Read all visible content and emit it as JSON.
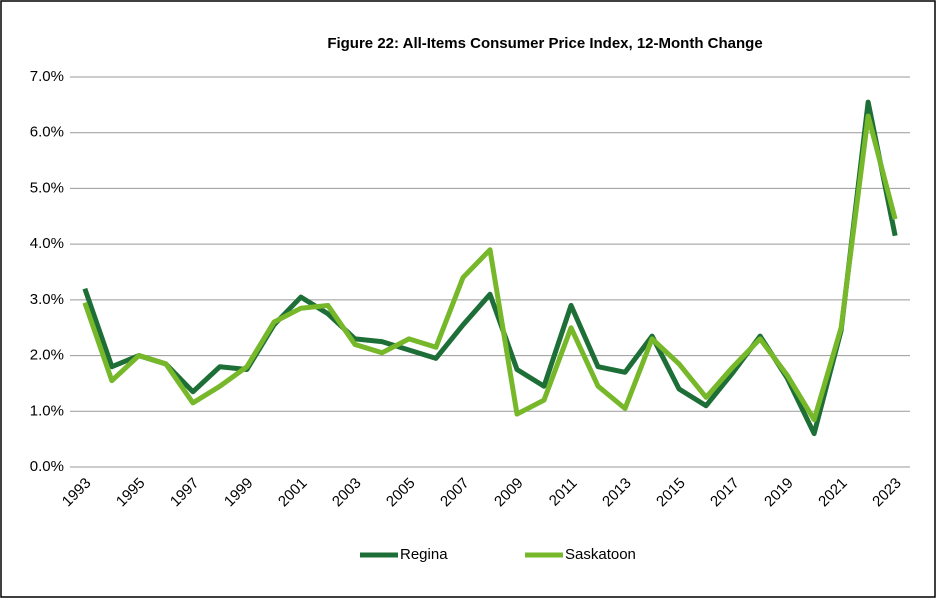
{
  "chart_data": {
    "type": "line",
    "title": "Figure 22: All-Items Consumer Price Index, 12-Month Change",
    "categories": [
      "1993",
      null,
      "1995",
      null,
      "1997",
      null,
      "1999",
      null,
      "2001",
      null,
      "2003",
      null,
      "2005",
      null,
      "2007",
      null,
      "2009",
      null,
      "2011",
      null,
      "2013",
      null,
      "2015",
      null,
      "2017",
      null,
      "2019",
      null,
      "2021",
      null,
      "2023"
    ],
    "series": [
      {
        "name": "Regina",
        "color": "#1e6f37",
        "values": [
          3.2,
          1.8,
          2.0,
          1.85,
          1.35,
          1.8,
          1.75,
          2.55,
          3.05,
          2.75,
          2.3,
          2.25,
          2.1,
          1.95,
          2.55,
          3.1,
          1.75,
          1.45,
          2.9,
          1.8,
          1.7,
          2.35,
          1.4,
          1.1,
          1.7,
          2.35,
          1.6,
          0.6,
          2.45,
          6.55,
          4.15
        ]
      },
      {
        "name": "Saskatoon",
        "color": "#76b82a",
        "values": [
          2.95,
          1.55,
          2.0,
          1.85,
          1.15,
          1.45,
          1.8,
          2.6,
          2.85,
          2.9,
          2.2,
          2.05,
          2.3,
          2.15,
          3.4,
          3.9,
          0.95,
          1.2,
          2.5,
          1.45,
          1.05,
          2.3,
          1.85,
          1.25,
          1.8,
          2.3,
          1.65,
          0.85,
          2.5,
          6.3,
          4.45
        ]
      }
    ],
    "ylim": [
      0,
      7
    ],
    "yticks": [
      {
        "value": 0,
        "label": "0.0%"
      },
      {
        "value": 1,
        "label": "1.0%"
      },
      {
        "value": 2,
        "label": "2.0%"
      },
      {
        "value": 3,
        "label": "3.0%"
      },
      {
        "value": 4,
        "label": "4.0%"
      },
      {
        "value": 5,
        "label": "5.0%"
      },
      {
        "value": 6,
        "label": "6.0%"
      },
      {
        "value": 7,
        "label": "7.0%"
      }
    ],
    "grid": true,
    "legend": "bottom"
  }
}
